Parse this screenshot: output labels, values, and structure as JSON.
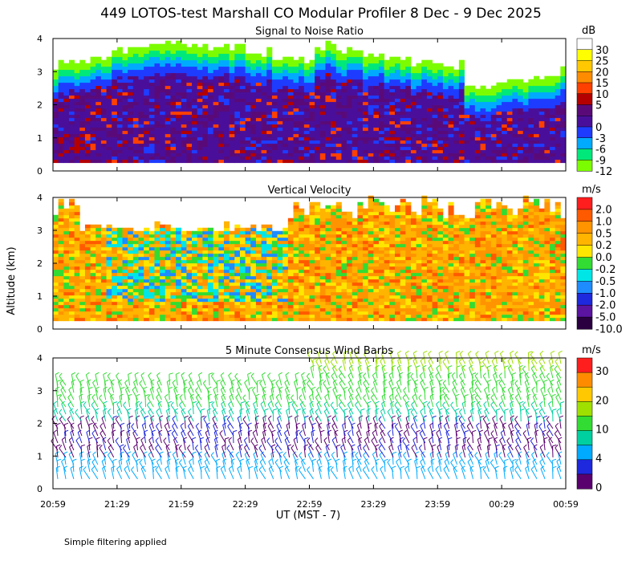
{
  "chart_data": {
    "type": "heatmap",
    "title": "449 LOTOS-test Marshall CO Modular Profiler  8 Dec -  9 Dec 2025",
    "ylabel": "Altitude (km)",
    "xlabel": "UT  (MST - 7)",
    "footnote": "Simple filtering applied",
    "x_ticks": [
      "20:59",
      "21:29",
      "21:59",
      "22:29",
      "22:59",
      "23:29",
      "23:59",
      "00:29",
      "00:59"
    ],
    "y_ticks": [
      "0",
      "1",
      "2",
      "3",
      "4"
    ],
    "ylim": [
      0,
      4
    ],
    "panels": [
      {
        "title": "Signal to Noise Ratio",
        "unit": "dB",
        "type": "heatmap",
        "colorbar": [
          {
            "label": "30",
            "color": "#ffffff"
          },
          {
            "label": "25",
            "color": "#ffff00"
          },
          {
            "label": "20",
            "color": "#ffc800"
          },
          {
            "label": "15",
            "color": "#ff8c00"
          },
          {
            "label": "10",
            "color": "#ff4000"
          },
          {
            "label": "5",
            "color": "#b40000"
          },
          {
            "label": "",
            "color": "#5a0a78"
          },
          {
            "label": "0",
            "color": "#4a0f9a"
          },
          {
            "label": "-3",
            "color": "#1e3cff"
          },
          {
            "label": "-6",
            "color": "#00aaff"
          },
          {
            "label": "-9",
            "color": "#00e87a"
          },
          {
            "label": "-12",
            "color": "#7cfc00"
          }
        ]
      },
      {
        "title": "Vertical Velocity",
        "unit": "m/s",
        "type": "heatmap",
        "colorbar": [
          {
            "label": "2.0",
            "color": "#ff1e1e"
          },
          {
            "label": "1.0",
            "color": "#ff5a00"
          },
          {
            "label": "0.5",
            "color": "#ff9400"
          },
          {
            "label": "0.2",
            "color": "#ffb400"
          },
          {
            "label": "0.0",
            "color": "#ffe600"
          },
          {
            "label": "-0.2",
            "color": "#32dc32"
          },
          {
            "label": "-0.5",
            "color": "#00e6e6"
          },
          {
            "label": "-1.0",
            "color": "#1e8cff"
          },
          {
            "label": "-2.0",
            "color": "#1e28dc"
          },
          {
            "label": "-5.0",
            "color": "#5a14a0"
          },
          {
            "label": "-10.0",
            "color": "#2a0040"
          }
        ]
      },
      {
        "title": "5 Minute Consensus Wind Barbs",
        "unit": "m/s",
        "type": "wind_barbs",
        "colorbar": [
          {
            "label": "30",
            "color": "#ff1e1e"
          },
          {
            "label": "",
            "color": "#ff8c00"
          },
          {
            "label": "20",
            "color": "#ffc800"
          },
          {
            "label": "",
            "color": "#a0e000"
          },
          {
            "label": "10",
            "color": "#32dc32"
          },
          {
            "label": "",
            "color": "#00d0a0"
          },
          {
            "label": "4",
            "color": "#00aaff"
          },
          {
            "label": "",
            "color": "#1e28dc"
          },
          {
            "label": "0",
            "color": "#5a006e"
          }
        ]
      }
    ],
    "colors": {
      "white": "#ffffff",
      "axis": "#000000"
    }
  }
}
